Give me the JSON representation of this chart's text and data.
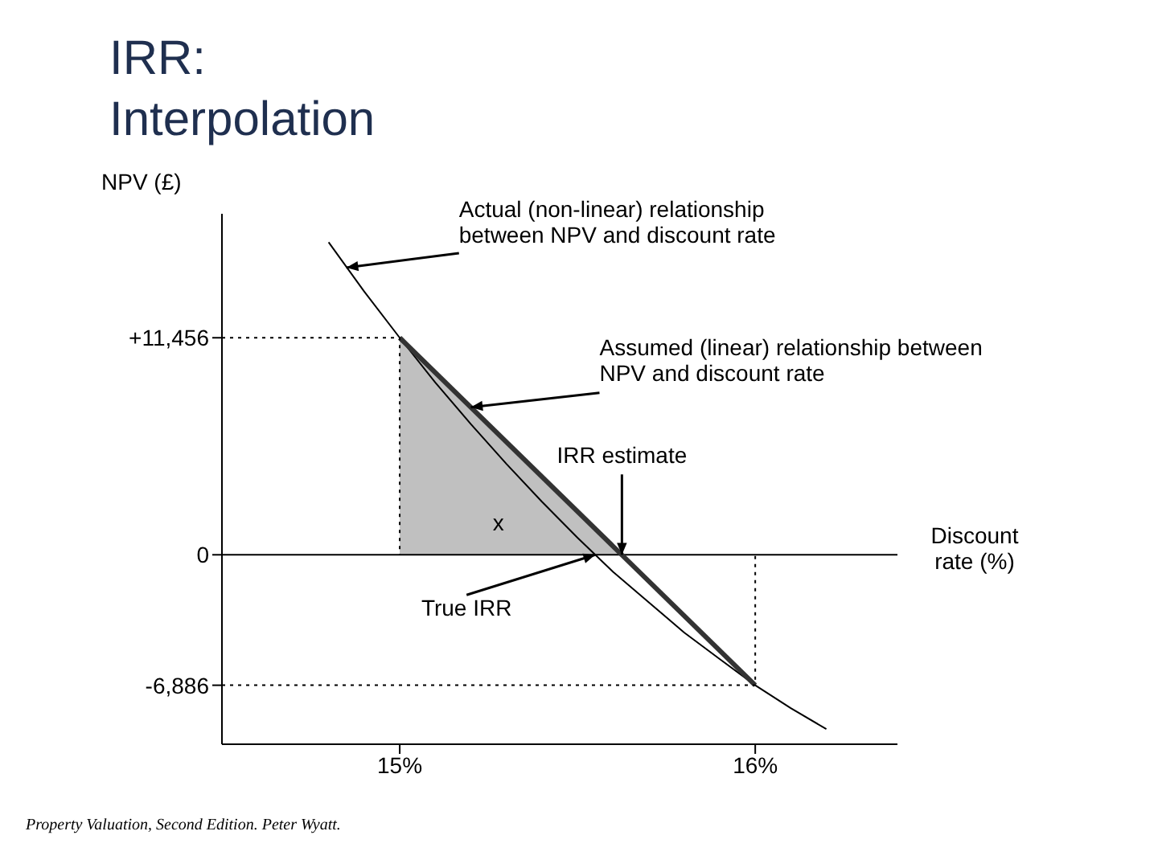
{
  "chart_data": {
    "type": "line",
    "title": "IRR: Interpolation",
    "ylabel": "NPV (£)",
    "xlabel": "Discount rate (%)",
    "xlim": [
      14.5,
      16.4
    ],
    "ylim": [
      -10000,
      18000
    ],
    "xticks": [
      {
        "value": 15,
        "label": "15%"
      },
      {
        "value": 16,
        "label": "16%"
      }
    ],
    "yticks": [
      {
        "value": 11456,
        "label": "+11,456"
      },
      {
        "value": 0,
        "label": "0"
      },
      {
        "value": -6886,
        "label": "-6,886"
      }
    ],
    "grid": false,
    "marker": "none",
    "ref_lines": [
      {
        "axis": "y",
        "value": 0,
        "color": "#000000"
      }
    ],
    "series": [
      {
        "type": "area",
        "color": "#c0c0c0",
        "x": [
          15,
          15.625
        ],
        "values": [
          11456,
          0
        ]
      },
      {
        "color": "#000000",
        "line_style": "solid",
        "x": [
          14.8,
          14.9,
          15,
          15.1,
          15.2,
          15.3,
          15.4,
          15.5,
          15.55,
          15.6,
          15.7,
          15.8,
          15.9,
          16,
          16.1,
          16.2
        ],
        "values": [
          16500,
          13900,
          11456,
          9100,
          6900,
          4800,
          2800,
          900,
          0,
          -900,
          -2500,
          -4100,
          -5500,
          -6886,
          -8100,
          -9200
        ]
      },
      {
        "color": "#333333",
        "line_style": "solid",
        "x": [
          15,
          16
        ],
        "values": [
          11456,
          -6886
        ]
      },
      {
        "color": "#000000",
        "line_style": "dotted",
        "x": [
          14.5,
          15,
          15
        ],
        "values": [
          11456,
          11456,
          0
        ]
      },
      {
        "color": "#000000",
        "line_style": "dotted",
        "x": [
          14.5,
          16,
          16
        ],
        "values": [
          -6886,
          -6886,
          0
        ]
      }
    ],
    "annotations": [
      {
        "text": "Actual (non-linear) relationship between NPV and discount rate",
        "x": 14.85,
        "y": 15156
      },
      {
        "text": "Assumed (linear) relationship between NPV and discount rate",
        "x": 15.2,
        "y": 7788
      },
      {
        "text": "IRR estimate",
        "x": 15.625,
        "y": 0
      },
      {
        "text": "True IRR",
        "x": 15.55,
        "y": 0
      },
      {
        "text": "x",
        "x": 15.3,
        "y": 0
      },
      "Property Valuation, Second Edition. Peter Wyatt."
    ]
  }
}
